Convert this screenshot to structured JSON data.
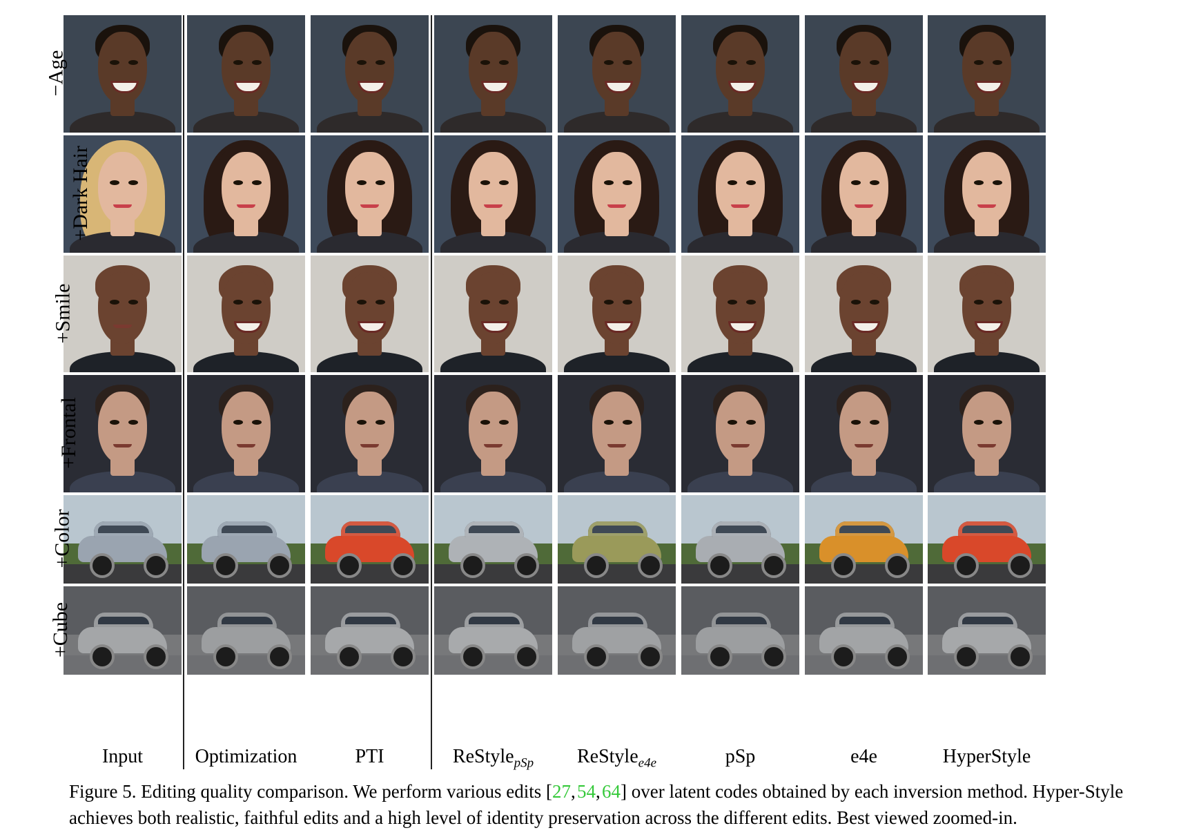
{
  "figure": {
    "row_labels": [
      "−Age",
      "+Dark Hair",
      "+Smile",
      "+Frontal",
      "+Color",
      "+Cube"
    ],
    "columns": [
      {
        "label": "Input",
        "sub": ""
      },
      {
        "label": "Optimization",
        "sub": ""
      },
      {
        "label": "PTI",
        "sub": ""
      },
      {
        "label": "ReStyle",
        "sub": "pSp"
      },
      {
        "label": "ReStyle",
        "sub": "e4e"
      },
      {
        "label": "pSp",
        "sub": ""
      },
      {
        "label": "e4e",
        "sub": ""
      },
      {
        "label": "HyperStyle",
        "sub": ""
      }
    ],
    "rows": [
      {
        "kind": "face",
        "bg": "#3c4652",
        "skin": "#5a3a28",
        "hair": "#1a120c",
        "smile": true,
        "body": "#2e2a2a"
      },
      {
        "kind": "face",
        "bg": "#3e4a5a",
        "skin": "#e2b89e",
        "hair": "#2a1a14",
        "smile": false,
        "body": "#2a2a30"
      },
      {
        "kind": "face",
        "bg": "#cfccc6",
        "skin": "#6b4330",
        "hair": "#6b4330",
        "smile": true,
        "body": "#1e2228"
      },
      {
        "kind": "face",
        "bg": "#2a2c34",
        "skin": "#c49a84",
        "hair": "#2c211c",
        "smile": false,
        "body": "#3a4050"
      },
      {
        "kind": "car",
        "sky": "#b9c6cf",
        "ground": "#4f6a38",
        "cars": [
          "#9aa4b0",
          "#9aa4b0",
          "#d9482a",
          "#aeb2b6",
          "#9a9a5a",
          "#a9adb2",
          "#d9902a",
          "#d9482a"
        ]
      },
      {
        "kind": "car",
        "sky": "#5a5c60",
        "ground": "#77787a",
        "cars": [
          "#a4a6a8",
          "#9c9ea0",
          "#a6a8aa",
          "#a8aaac",
          "#9fa1a3",
          "#9c9ea0",
          "#a2a4a6",
          "#a6a8aa"
        ]
      }
    ],
    "caption": {
      "prefix": "Figure 5. Editing quality comparison. We perform various edits [",
      "refs": [
        "27",
        "54",
        "64"
      ],
      "suffix": "] over latent codes obtained by each inversion method. Hyper-Style achieves both realistic, faithful edits and a high level of identity preservation across the different edits. Best viewed zoomed-in."
    }
  }
}
